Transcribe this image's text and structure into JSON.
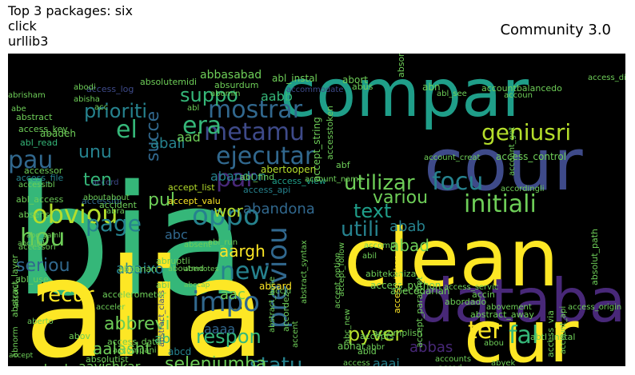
{
  "header": {
    "title_lines": [
      "Top 3 packages: six",
      "click",
      "urllib3"
    ],
    "right_title": "Community 3.0"
  },
  "colors": {
    "background": "#000000",
    "yellow": "#fde725",
    "bright_green": "#b5de2b",
    "green": "#6ece58",
    "teal_green": "#35b779",
    "jade": "#1f9e89",
    "teal": "#26828e",
    "steel": "#31688e",
    "slate": "#3e4a89",
    "indigo": "#482878",
    "purple": "#440154"
  },
  "chart_data": {
    "type": "wordcloud",
    "title": "Community 3.0",
    "words": [
      {
        "text": "bia",
        "color": "teal_green"
      },
      {
        "text": "alia",
        "color": "yellow"
      },
      {
        "text": "compar",
        "color": "jade"
      },
      {
        "text": "clean",
        "color": "yellow"
      },
      {
        "text": "cour",
        "color": "slate"
      },
      {
        "text": "databa",
        "color": "indigo"
      },
      {
        "text": "cur",
        "color": "yellow"
      },
      {
        "text": "mostrar",
        "color": "steel"
      },
      {
        "text": "metamu",
        "color": "slate"
      },
      {
        "text": "ejecutar",
        "color": "steel"
      },
      {
        "text": "geniusri",
        "color": "bright_green"
      },
      {
        "text": "initiali",
        "color": "green"
      },
      {
        "text": "focu",
        "color": "teal"
      },
      {
        "text": "utilizar",
        "color": "green"
      },
      {
        "text": "era",
        "color": "teal_green"
      },
      {
        "text": "el",
        "color": "teal_green"
      },
      {
        "text": "pau",
        "color": "steel"
      },
      {
        "text": "par",
        "color": "indigo"
      },
      {
        "text": "obviou",
        "color": "bright_green"
      },
      {
        "text": "oppo",
        "color": "teal"
      },
      {
        "text": "hou",
        "color": "green"
      },
      {
        "text": "page",
        "color": "teal"
      },
      {
        "text": "new",
        "color": "teal"
      },
      {
        "text": "impo",
        "color": "steel"
      },
      {
        "text": "previou",
        "color": "steel"
      },
      {
        "text": "fal",
        "color": "teal_green"
      },
      {
        "text": "ter",
        "color": "yellow"
      },
      {
        "text": "respon",
        "color": "teal_green"
      },
      {
        "text": "pyver",
        "color": "bright_green"
      },
      {
        "text": "statu",
        "color": "teal"
      },
      {
        "text": "seleniumba",
        "color": "green"
      },
      {
        "text": "recur",
        "color": "yellow"
      },
      {
        "text": "utili",
        "color": "teal"
      },
      {
        "text": "seriou",
        "color": "steel"
      },
      {
        "text": "text",
        "color": "jade"
      },
      {
        "text": "prioriti",
        "color": "teal"
      },
      {
        "text": "suppo",
        "color": "teal_green"
      },
      {
        "text": "unu",
        "color": "teal"
      },
      {
        "text": "ten",
        "color": "teal_green"
      },
      {
        "text": "succe",
        "color": "steel"
      },
      {
        "text": "pul",
        "color": "green"
      },
      {
        "text": "wor",
        "color": "bright_green"
      },
      {
        "text": "variou",
        "color": "green"
      },
      {
        "text": "abab",
        "color": "teal"
      },
      {
        "text": "abad",
        "color": "green"
      },
      {
        "text": "abbasabad",
        "color": "green"
      },
      {
        "text": "abbrevi",
        "color": "green"
      },
      {
        "text": "aalasht",
        "color": "green"
      },
      {
        "text": "aavishkar",
        "color": "green"
      },
      {
        "text": "abadan",
        "color": "green"
      },
      {
        "text": "aaai",
        "color": "teal"
      },
      {
        "text": "aaaa",
        "color": "steel"
      },
      {
        "text": "abaixo",
        "color": "teal"
      },
      {
        "text": "aac",
        "color": "green"
      },
      {
        "text": "aargh",
        "color": "yellow"
      },
      {
        "text": "abandona",
        "color": "steel"
      },
      {
        "text": "abandon",
        "color": "teal"
      },
      {
        "text": "abali",
        "color": "teal"
      },
      {
        "text": "aad",
        "color": "green"
      },
      {
        "text": "aabb",
        "color": "teal_green"
      },
      {
        "text": "abc",
        "color": "steel"
      },
      {
        "text": "ab",
        "color": "teal_green"
      },
      {
        "text": "abbas",
        "color": "indigo"
      },
      {
        "text": "abl_instal",
        "color": "green"
      },
      {
        "text": "abadeh",
        "color": "green"
      },
      {
        "text": "abstract",
        "color": "green"
      },
      {
        "text": "accept_list",
        "color": "bright_green"
      },
      {
        "text": "accept_valu",
        "color": "yellow"
      },
      {
        "text": "abertoopen",
        "color": "bright_green"
      },
      {
        "text": "abl_find",
        "color": "green"
      },
      {
        "text": "access_api",
        "color": "teal"
      },
      {
        "text": "access_view",
        "color": "jade"
      },
      {
        "text": "accessibl",
        "color": "steel"
      },
      {
        "text": "accessor",
        "color": "green"
      },
      {
        "text": "access_file",
        "color": "teal"
      },
      {
        "text": "abl_access",
        "color": "green"
      },
      {
        "text": "abruptli",
        "color": "green"
      },
      {
        "text": "abertotes",
        "color": "green"
      },
      {
        "text": "abccap",
        "color": "green"
      },
      {
        "text": "abl_use",
        "color": "green"
      },
      {
        "text": "abl_read",
        "color": "teal_green"
      },
      {
        "text": "abc_link",
        "color": "green"
      },
      {
        "text": "abstract_class",
        "color": "slate"
      },
      {
        "text": "abstract_base",
        "color": "green"
      },
      {
        "text": "abstract_syntax",
        "color": "green"
      },
      {
        "text": "absolutemidi",
        "color": "green"
      },
      {
        "text": "access_log",
        "color": "slate"
      },
      {
        "text": "abisha",
        "color": "green"
      },
      {
        "text": "accept_follow",
        "color": "green"
      },
      {
        "text": "accept_option",
        "color": "green"
      },
      {
        "text": "accommodate",
        "color": "slate"
      },
      {
        "text": "access_python",
        "color": "green"
      },
      {
        "text": "abitekaniza",
        "color": "green"
      },
      {
        "text": "abil",
        "color": "green"
      },
      {
        "text": "accomp",
        "color": "green"
      },
      {
        "text": "abecedarian",
        "color": "green"
      },
      {
        "text": "abordado",
        "color": "green"
      },
      {
        "text": "access_servic",
        "color": "green"
      },
      {
        "text": "access_token",
        "color": "yellow"
      },
      {
        "text": "accin",
        "color": "green"
      },
      {
        "text": "accomplish",
        "color": "green"
      },
      {
        "text": "abstract_away",
        "color": "green"
      },
      {
        "text": "abtl_instal",
        "color": "green"
      },
      {
        "text": "access_origin",
        "color": "green"
      },
      {
        "text": "access_via",
        "color": "green"
      },
      {
        "text": "absorpt",
        "color": "green"
      },
      {
        "text": "abovement",
        "color": "green"
      },
      {
        "text": "accordingli",
        "color": "green"
      },
      {
        "text": "access_directi",
        "color": "green"
      },
      {
        "text": "absolut_path",
        "color": "green"
      },
      {
        "text": "abyek",
        "color": "green"
      },
      {
        "text": "access",
        "color": "green"
      },
      {
        "text": "abc_new",
        "color": "green"
      },
      {
        "text": "abhar",
        "color": "green"
      },
      {
        "text": "abid",
        "color": "green"
      },
      {
        "text": "abrisham",
        "color": "green"
      },
      {
        "text": "acceler",
        "color": "green"
      },
      {
        "text": "abra",
        "color": "green"
      },
      {
        "text": "accessori",
        "color": "green"
      },
      {
        "text": "accessibl",
        "color": "green"
      },
      {
        "text": "absens",
        "color": "green"
      },
      {
        "text": "abc_yaml",
        "color": "green"
      },
      {
        "text": "abstract_layer",
        "color": "green"
      },
      {
        "text": "absolut",
        "color": "green"
      },
      {
        "text": "abnorm",
        "color": "green"
      },
      {
        "text": "aberto",
        "color": "green"
      },
      {
        "text": "accept",
        "color": "green"
      },
      {
        "text": "accent",
        "color": "green"
      },
      {
        "text": "abort",
        "color": "green"
      },
      {
        "text": "abus",
        "color": "green"
      },
      {
        "text": "absurdum",
        "color": "green"
      },
      {
        "text": "abomin",
        "color": "green"
      },
      {
        "text": "abodi",
        "color": "green"
      },
      {
        "text": "abn",
        "color": "green"
      },
      {
        "text": "abl_see",
        "color": "green"
      },
      {
        "text": "accountbalancedo",
        "color": "green"
      },
      {
        "text": "account_name",
        "color": "green"
      },
      {
        "text": "accesstoken",
        "color": "green"
      },
      {
        "text": "accident",
        "color": "green"
      },
      {
        "text": "accord",
        "color": "slate"
      },
      {
        "text": "aboutabout",
        "color": "green"
      },
      {
        "text": "abf",
        "color": "green"
      },
      {
        "text": "accoun",
        "color": "green"
      },
      {
        "text": "access_control",
        "color": "green"
      },
      {
        "text": "accordez",
        "color": "green"
      },
      {
        "text": "absent",
        "color": "green"
      },
      {
        "text": "accelerometer",
        "color": "green"
      },
      {
        "text": "abdanan",
        "color": "green"
      },
      {
        "text": "aboutmd",
        "color": "green"
      },
      {
        "text": "accid",
        "color": "green"
      },
      {
        "text": "absard",
        "color": "yellow"
      },
      {
        "text": "abi",
        "color": "green"
      },
      {
        "text": "accompani",
        "color": "green"
      },
      {
        "text": "access_data",
        "color": "green"
      },
      {
        "text": "absolutist",
        "color": "green"
      },
      {
        "text": "abov",
        "color": "green"
      },
      {
        "text": "abcd",
        "color": "teal"
      },
      {
        "text": "abrir",
        "color": "green"
      },
      {
        "text": "accad",
        "color": "green"
      },
      {
        "text": "abbr",
        "color": "green"
      },
      {
        "text": "account",
        "color": "green"
      },
      {
        "text": "accept_paramet",
        "color": "green"
      },
      {
        "text": "abou",
        "color": "green"
      },
      {
        "text": "accepts",
        "color": "green"
      },
      {
        "text": "account_api",
        "color": "green"
      },
      {
        "text": "academ",
        "color": "green"
      },
      {
        "text": "account_creat",
        "color": "green"
      },
      {
        "text": "account_get",
        "color": "green"
      },
      {
        "text": "accounts",
        "color": "green"
      },
      {
        "text": "acc",
        "color": "green"
      },
      {
        "text": "abe",
        "color": "green"
      },
      {
        "text": "abl",
        "color": "green"
      },
      {
        "text": "abl_run",
        "color": "green"
      },
      {
        "text": "accept_string",
        "color": "green"
      },
      {
        "text": "access_key",
        "color": "green"
      }
    ]
  }
}
